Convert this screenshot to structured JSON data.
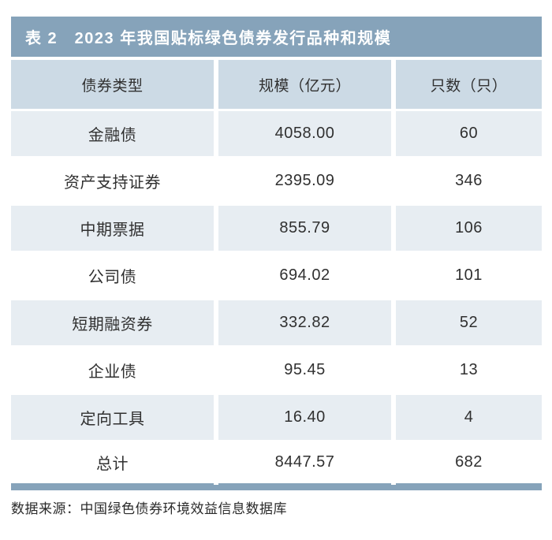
{
  "caption": "表 2　2023 年我国贴标绿色债券发行品种和规模",
  "colors": {
    "accent_bar": "#86a3ba",
    "header_row_bg": "#ccdae5",
    "zebra_row_bg": "#e7edf2",
    "plain_row_bg": "#ffffff",
    "caption_text": "#ffffff",
    "cell_text": "#303030"
  },
  "table": {
    "headers": [
      "债券类型",
      "规模（亿元）",
      "只数（只）"
    ],
    "rows": [
      {
        "type": "金融债",
        "scale": "4058.00",
        "count": "60"
      },
      {
        "type": "资产支持证券",
        "scale": "2395.09",
        "count": "346"
      },
      {
        "type": "中期票据",
        "scale": "855.79",
        "count": "106"
      },
      {
        "type": "公司债",
        "scale": "694.02",
        "count": "101"
      },
      {
        "type": "短期融资券",
        "scale": "332.82",
        "count": "52"
      },
      {
        "type": "企业债",
        "scale": "95.45",
        "count": "13"
      },
      {
        "type": "定向工具",
        "scale": "16.40",
        "count": "4"
      },
      {
        "type": "总计",
        "scale": "8447.57",
        "count": "682"
      }
    ]
  },
  "footer": {
    "source": "数据来源：中国绿色债券环境效益信息数据库"
  }
}
